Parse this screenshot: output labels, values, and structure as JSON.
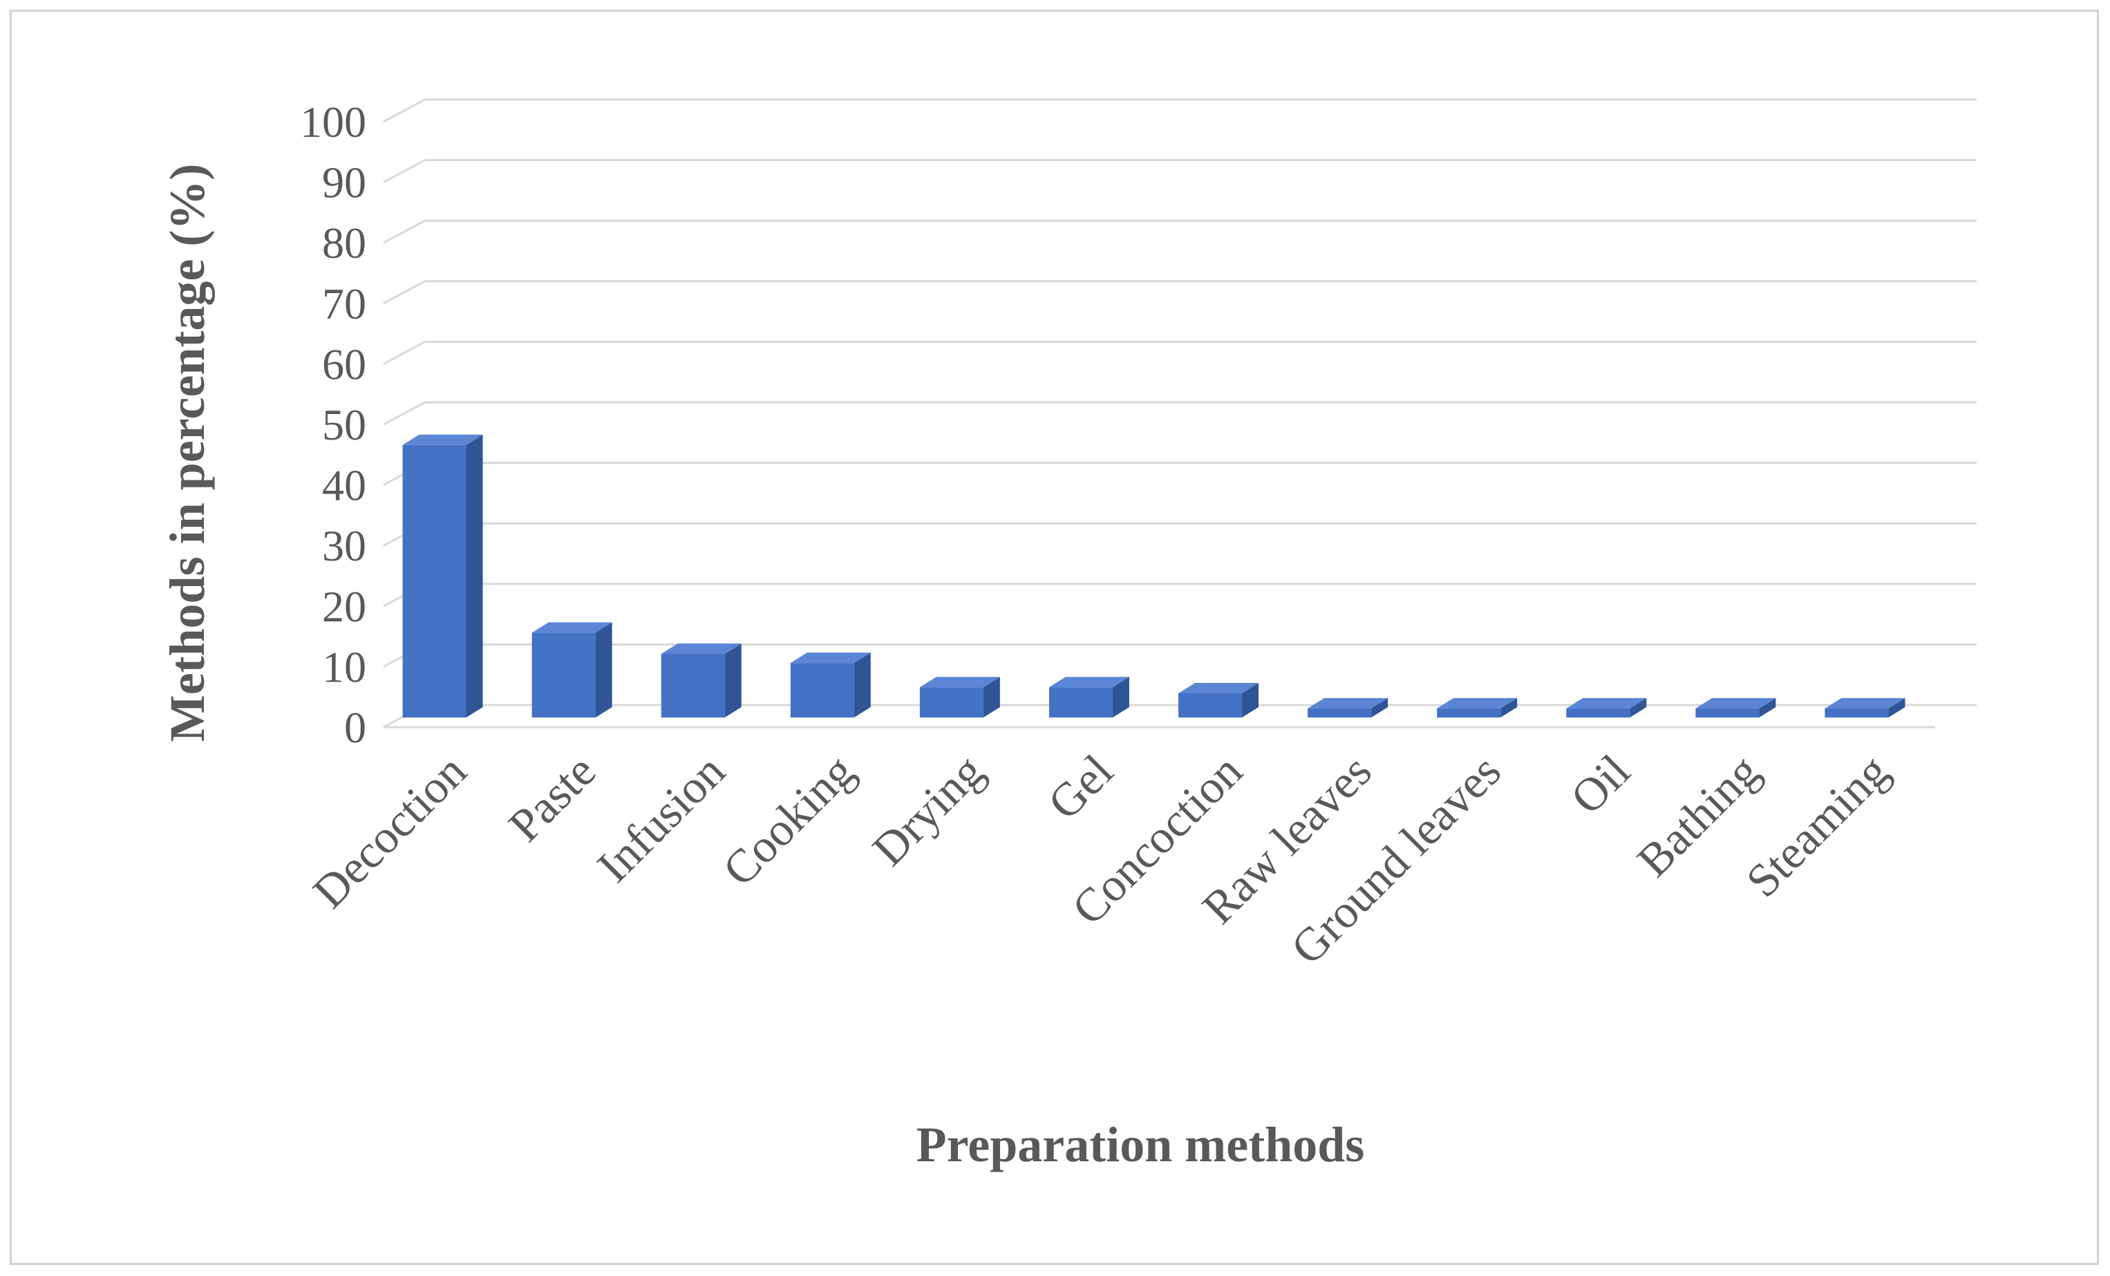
{
  "chart_data": {
    "type": "bar",
    "categories": [
      "Decoction",
      "Paste",
      "Infusion",
      "Cooking",
      "Drying",
      "Gel",
      "Concoction",
      "Raw leaves",
      "Ground leaves",
      "Oil",
      "Bathing",
      "Steaming"
    ],
    "values": [
      45,
      14,
      10.5,
      9,
      5,
      5,
      4,
      1.5,
      1.5,
      1.5,
      1.5,
      1.5
    ],
    "title": "",
    "xlabel": "Preparation methods",
    "ylabel": "Methods in percentage (%)",
    "ylim": [
      0,
      100
    ],
    "yticks": [
      "0",
      "10",
      "20",
      "30",
      "40",
      "50",
      "60",
      "70",
      "80",
      "90",
      "100"
    ],
    "grid": true,
    "legend": "none",
    "style": "3d-column"
  },
  "colors": {
    "bar_front": "#4472c4",
    "bar_side": "#2f5597",
    "bar_top": "#5b86d6",
    "grid": "#d9d9d9",
    "text": "#595959"
  }
}
